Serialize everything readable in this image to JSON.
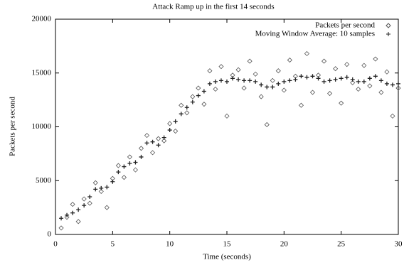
{
  "chart_data": {
    "type": "scatter",
    "title": "Attack Ramp up in the first 14 seconds",
    "x_label": "Time (seconds)",
    "y_label": "Packets per second",
    "xlim": [
      0,
      30
    ],
    "ylim": [
      0,
      20000
    ],
    "xticks": [
      0,
      5,
      10,
      15,
      20,
      25,
      30
    ],
    "yticks": [
      0,
      5000,
      10000,
      15000,
      20000
    ],
    "grid": false,
    "legend": "top-right",
    "x": [
      0.5,
      1,
      1.5,
      2,
      2.5,
      3,
      3.5,
      4,
      4.5,
      5,
      5.5,
      6,
      6.5,
      7,
      7.5,
      8,
      8.5,
      9,
      9.5,
      10,
      10.5,
      11,
      11.5,
      12,
      12.5,
      13,
      13.5,
      14,
      14.5,
      15,
      15.5,
      16,
      16.5,
      17,
      17.5,
      18,
      18.5,
      19,
      19.5,
      20,
      20.5,
      21,
      21.5,
      22,
      22.5,
      23,
      23.5,
      24,
      24.5,
      25,
      25.5,
      26,
      26.5,
      27,
      27.5,
      28,
      28.5,
      29,
      29.5,
      30
    ],
    "series": [
      {
        "name": "Packets per second",
        "marker": "diamond",
        "color": "#555555",
        "values": [
          600,
          1600,
          2800,
          1200,
          3300,
          2900,
          4800,
          4000,
          2500,
          5200,
          6400,
          5300,
          7200,
          6000,
          8000,
          9200,
          7600,
          8900,
          8700,
          10300,
          9600,
          12000,
          11300,
          12800,
          13600,
          12100,
          15200,
          13500,
          15600,
          11000,
          14800,
          15300,
          13600,
          16100,
          14900,
          12800,
          10200,
          14300,
          15200,
          13400,
          16200,
          14700,
          12000,
          16800,
          13200,
          14800,
          16100,
          13100,
          15400,
          12200,
          15800,
          14100,
          13500,
          15700,
          13800,
          16300,
          13200,
          15100,
          11000,
          13600
        ]
      },
      {
        "name": "Moving Window Average: 10 samples",
        "marker": "plus",
        "color": "#222222",
        "values": [
          1500,
          1800,
          2000,
          2300,
          2700,
          3500,
          4200,
          4300,
          4400,
          4900,
          5800,
          6300,
          6600,
          6700,
          7200,
          8500,
          8600,
          8300,
          9000,
          9700,
          10500,
          11200,
          11800,
          12300,
          12900,
          13300,
          14000,
          14200,
          14300,
          14200,
          14500,
          14400,
          14300,
          14300,
          14200,
          13900,
          13700,
          13700,
          14000,
          14200,
          14300,
          14400,
          14700,
          14600,
          14700,
          14500,
          14200,
          14300,
          14400,
          14500,
          14600,
          14400,
          14200,
          14200,
          14500,
          14700,
          14300,
          14000,
          13900,
          14000
        ]
      }
    ]
  }
}
